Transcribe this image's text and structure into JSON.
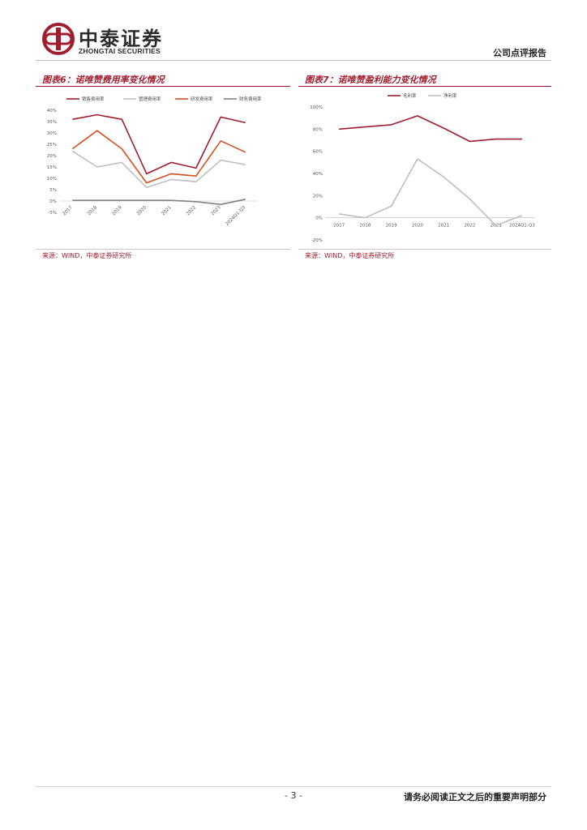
{
  "header": {
    "logo_cn": "中泰证券",
    "logo_en": "ZHONGTAI SECURITIES",
    "report_type": "公司点评报告"
  },
  "figures": [
    {
      "title": "图表6：诺唯赞费用率变化情况",
      "source": "来源：WIND，中泰证券研究所",
      "chart_data": {
        "type": "line",
        "categories": [
          "2017",
          "2018",
          "2019",
          "2020",
          "2021",
          "2022",
          "2023",
          "2024Q1-Q3"
        ],
        "ylim": [
          -5,
          40
        ],
        "yticks": [
          "-5%",
          "0%",
          "5%",
          "10%",
          "15%",
          "20%",
          "25%",
          "30%",
          "35%",
          "40%"
        ],
        "legend_position": "top",
        "series": [
          {
            "name": "销售费用率",
            "color": "#a01d2f",
            "values": [
              36,
              38,
              36,
              12,
              17,
              14.5,
              37,
              34.5
            ]
          },
          {
            "name": "管理费用率",
            "color": "#bfbfbf",
            "values": [
              22,
              15,
              17,
              6,
              9.5,
              8.5,
              18,
              16
            ]
          },
          {
            "name": "研发费用率",
            "color": "#d2501f",
            "values": [
              23,
              31,
              23,
              8,
              12,
              11,
              26.5,
              21.5
            ]
          },
          {
            "name": "财务费用率",
            "color": "#808080",
            "values": [
              0.3,
              0.3,
              0.3,
              0.3,
              0.3,
              -0.3,
              -1.5,
              0.8
            ]
          }
        ]
      }
    },
    {
      "title": "图表7：诺唯赞盈利能力变化情况",
      "source": "来源：WIND，中泰证券研究所",
      "chart_data": {
        "type": "line",
        "categories": [
          "2017",
          "2018",
          "2019",
          "2020",
          "2021",
          "2022",
          "2023",
          "2024Q1-Q3"
        ],
        "ylim": [
          -20,
          100
        ],
        "yticks": [
          "-20%",
          "0%",
          "20%",
          "40%",
          "60%",
          "80%",
          "100%"
        ],
        "legend_position": "top",
        "series": [
          {
            "name": "毛利率",
            "color": "#a01d2f",
            "values": [
              80,
              82,
              84,
              92,
              81,
              69,
              71,
              71
            ]
          },
          {
            "name": "净利率",
            "color": "#bfbfbf",
            "values": [
              3.5,
              0,
              10.5,
              53,
              37,
              17,
              -7,
              2
            ]
          }
        ]
      }
    }
  ],
  "footer": {
    "page_number": "- 3 -",
    "disclaimer": "请务必阅读正文之后的重要声明部分"
  }
}
